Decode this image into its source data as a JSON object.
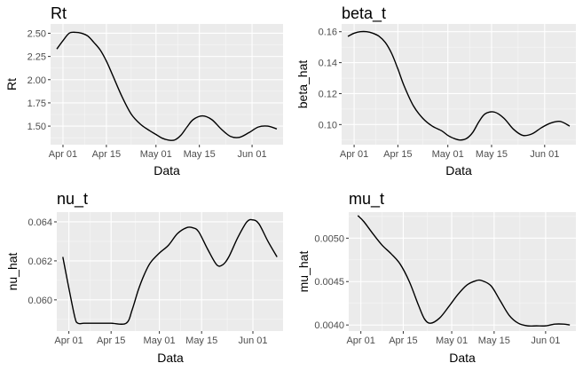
{
  "chart_data": [
    {
      "type": "line",
      "title": "Rt",
      "xlabel": "Data",
      "ylabel": "Rt",
      "x_ticks": [
        "Apr 01",
        "Apr 15",
        "May 01",
        "May 15",
        "Jun 01"
      ],
      "y_ticks": [
        "1.50",
        "1.75",
        "2.00",
        "2.25",
        "2.50"
      ],
      "x_tick_dates": [
        "2020-04-01",
        "2020-04-15",
        "2020-05-01",
        "2020-05-15",
        "2020-06-01"
      ],
      "y_tick_values": [
        1.5,
        1.75,
        2.0,
        2.25,
        2.5
      ],
      "xlim": [
        "2020-03-28",
        "2020-06-11"
      ],
      "ylim": [
        1.3,
        2.6
      ],
      "grid": true,
      "series": [
        {
          "color": "#000000",
          "x": [
            "2020-03-30",
            "2020-04-01",
            "2020-04-03",
            "2020-04-05",
            "2020-04-07",
            "2020-04-09",
            "2020-04-11",
            "2020-04-13",
            "2020-04-15",
            "2020-04-17",
            "2020-04-20",
            "2020-04-23",
            "2020-04-26",
            "2020-04-29",
            "2020-05-01",
            "2020-05-03",
            "2020-05-05",
            "2020-05-07",
            "2020-05-09",
            "2020-05-11",
            "2020-05-13",
            "2020-05-16",
            "2020-05-19",
            "2020-05-22",
            "2020-05-25",
            "2020-05-28",
            "2020-05-31",
            "2020-06-03",
            "2020-06-06",
            "2020-06-09"
          ],
          "y": [
            2.33,
            2.42,
            2.5,
            2.51,
            2.5,
            2.47,
            2.4,
            2.32,
            2.2,
            2.05,
            1.82,
            1.63,
            1.52,
            1.45,
            1.41,
            1.37,
            1.35,
            1.35,
            1.4,
            1.49,
            1.57,
            1.61,
            1.57,
            1.47,
            1.39,
            1.38,
            1.43,
            1.49,
            1.5,
            1.47
          ]
        }
      ]
    },
    {
      "type": "line",
      "title": "beta_t",
      "xlabel": "Data",
      "ylabel": "beta_hat",
      "x_ticks": [
        "Apr 01",
        "Apr 15",
        "May 01",
        "May 15",
        "Jun 01"
      ],
      "y_ticks": [
        "0.10",
        "0.12",
        "0.14",
        "0.16"
      ],
      "x_tick_dates": [
        "2020-04-01",
        "2020-04-15",
        "2020-05-01",
        "2020-05-15",
        "2020-06-01"
      ],
      "y_tick_values": [
        0.1,
        0.12,
        0.14,
        0.16
      ],
      "xlim": [
        "2020-03-28",
        "2020-06-11"
      ],
      "ylim": [
        0.087,
        0.165
      ],
      "grid": true,
      "series": [
        {
          "color": "#000000",
          "x": [
            "2020-03-30",
            "2020-04-01",
            "2020-04-03",
            "2020-04-05",
            "2020-04-07",
            "2020-04-09",
            "2020-04-11",
            "2020-04-13",
            "2020-04-15",
            "2020-04-17",
            "2020-04-20",
            "2020-04-23",
            "2020-04-26",
            "2020-04-29",
            "2020-05-01",
            "2020-05-03",
            "2020-05-05",
            "2020-05-07",
            "2020-05-09",
            "2020-05-11",
            "2020-05-13",
            "2020-05-16",
            "2020-05-19",
            "2020-05-22",
            "2020-05-25",
            "2020-05-28",
            "2020-05-31",
            "2020-06-03",
            "2020-06-06",
            "2020-06-09"
          ],
          "y": [
            0.157,
            0.159,
            0.16,
            0.16,
            0.159,
            0.157,
            0.153,
            0.146,
            0.136,
            0.125,
            0.112,
            0.104,
            0.099,
            0.096,
            0.093,
            0.091,
            0.09,
            0.091,
            0.095,
            0.102,
            0.107,
            0.108,
            0.104,
            0.097,
            0.093,
            0.094,
            0.098,
            0.101,
            0.102,
            0.099
          ]
        }
      ]
    },
    {
      "type": "line",
      "title": "nu_t",
      "xlabel": "Data",
      "ylabel": "nu_hat",
      "x_ticks": [
        "Apr 01",
        "Apr 15",
        "May 01",
        "May 15",
        "Jun 01"
      ],
      "y_ticks": [
        "0.060",
        "0.062",
        "0.064"
      ],
      "x_tick_dates": [
        "2020-04-01",
        "2020-04-15",
        "2020-05-01",
        "2020-05-15",
        "2020-06-01"
      ],
      "y_tick_values": [
        0.06,
        0.062,
        0.064
      ],
      "xlim": [
        "2020-03-28",
        "2020-06-11"
      ],
      "ylim": [
        0.0584,
        0.0645
      ],
      "grid": true,
      "series": [
        {
          "color": "#000000",
          "x": [
            "2020-03-30",
            "2020-04-01",
            "2020-04-03",
            "2020-04-04",
            "2020-04-06",
            "2020-04-10",
            "2020-04-15",
            "2020-04-20",
            "2020-04-22",
            "2020-04-24",
            "2020-04-26",
            "2020-04-28",
            "2020-05-01",
            "2020-05-04",
            "2020-05-07",
            "2020-05-10",
            "2020-05-12",
            "2020-05-14",
            "2020-05-17",
            "2020-05-20",
            "2020-05-22",
            "2020-05-24",
            "2020-05-27",
            "2020-05-30",
            "2020-06-01",
            "2020-06-03",
            "2020-06-06",
            "2020-06-09"
          ],
          "y": [
            0.0622,
            0.0606,
            0.0591,
            0.0588,
            0.0588,
            0.0588,
            0.0588,
            0.0588,
            0.0595,
            0.0605,
            0.0613,
            0.0619,
            0.0624,
            0.0628,
            0.0634,
            0.0637,
            0.0637,
            0.0635,
            0.0626,
            0.0618,
            0.0618,
            0.0622,
            0.0632,
            0.064,
            0.0641,
            0.0639,
            0.063,
            0.0622
          ]
        }
      ]
    },
    {
      "type": "line",
      "title": "mu_t",
      "xlabel": "Data",
      "ylabel": "mu_hat",
      "x_ticks": [
        "Apr 01",
        "Apr 15",
        "May 01",
        "May 15",
        "Jun 01"
      ],
      "y_ticks": [
        "0.0040",
        "0.0045",
        "0.0050"
      ],
      "x_tick_dates": [
        "2020-04-01",
        "2020-04-15",
        "2020-05-01",
        "2020-05-15",
        "2020-06-01"
      ],
      "y_tick_values": [
        0.004,
        0.0045,
        0.005
      ],
      "xlim": [
        "2020-03-28",
        "2020-06-11"
      ],
      "ylim": [
        0.00393,
        0.0053
      ],
      "grid": true,
      "series": [
        {
          "color": "#000000",
          "x": [
            "2020-03-31",
            "2020-04-02",
            "2020-04-05",
            "2020-04-08",
            "2020-04-11",
            "2020-04-14",
            "2020-04-17",
            "2020-04-20",
            "2020-04-22",
            "2020-04-24",
            "2020-04-27",
            "2020-04-30",
            "2020-05-03",
            "2020-05-06",
            "2020-05-09",
            "2020-05-11",
            "2020-05-14",
            "2020-05-17",
            "2020-05-20",
            "2020-05-23",
            "2020-05-26",
            "2020-05-29",
            "2020-06-01",
            "2020-06-04",
            "2020-06-07",
            "2020-06-09"
          ],
          "y": [
            0.00526,
            0.00519,
            0.00505,
            0.00492,
            0.00482,
            0.0047,
            0.0045,
            0.00423,
            0.00407,
            0.00402,
            0.00408,
            0.00421,
            0.00435,
            0.00446,
            0.00451,
            0.00451,
            0.00445,
            0.00428,
            0.00411,
            0.00402,
            0.00399,
            0.00399,
            0.00399,
            0.00401,
            0.00401,
            0.004
          ]
        }
      ]
    }
  ]
}
